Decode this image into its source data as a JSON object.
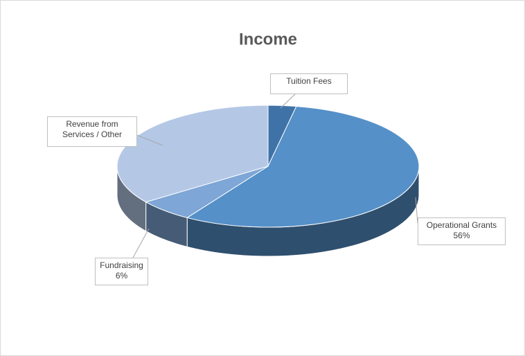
{
  "chart_data": {
    "type": "pie",
    "title": "Income",
    "categories": [
      "Tuition Fees",
      "Operational Grants",
      "Fundraising",
      "Revenue from Services / Other"
    ],
    "values": [
      3,
      56,
      6,
      35
    ],
    "value_labels": [
      null,
      "56%",
      "6%",
      null
    ],
    "colors": [
      "#3f73a8",
      "#5590c8",
      "#7ea6d6",
      "#b4c8e6"
    ]
  }
}
